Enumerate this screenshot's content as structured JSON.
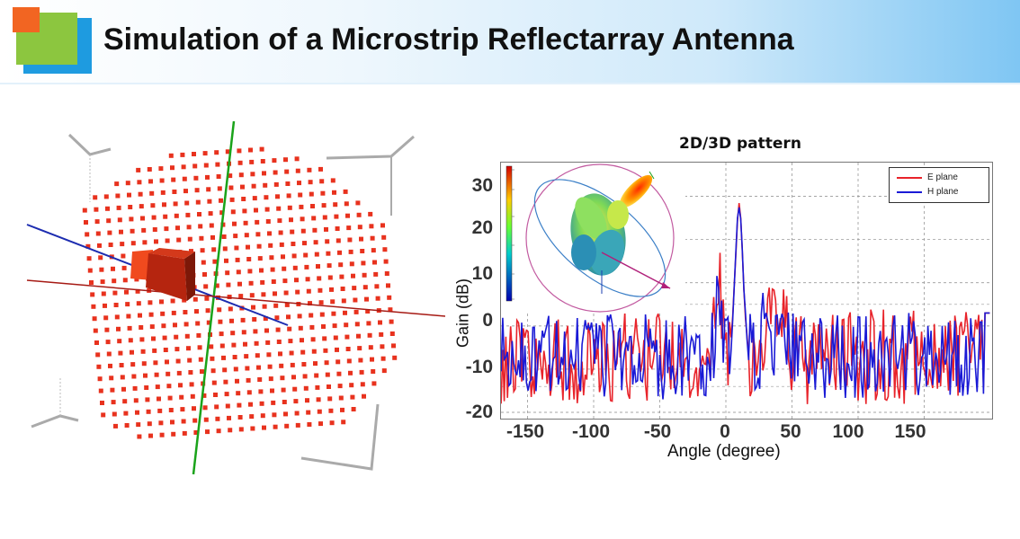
{
  "header": {
    "title": "Simulation of a Microstrip Reflectarray Antenna"
  },
  "pattern": {
    "title": "2D/3D pattern",
    "ylabel": "Gain (dB)",
    "xlabel": "Angle (degree)",
    "yticks": [
      "30",
      "20",
      "10",
      "0",
      "-10",
      "-20"
    ],
    "xticks": [
      "-150",
      "-100",
      "-50",
      "0",
      "50",
      "100",
      "150"
    ]
  },
  "legend": {
    "e_plane": "E plane",
    "h_plane": "H plane",
    "e_color": "#e8232a",
    "h_color": "#1a1ad6"
  },
  "colors": {
    "element": "#e8321e",
    "feed": "#b5250f",
    "axis_green": "#1aa31a",
    "axis_blue": "#1c2cb0",
    "axis_red": "#a61a14"
  }
}
